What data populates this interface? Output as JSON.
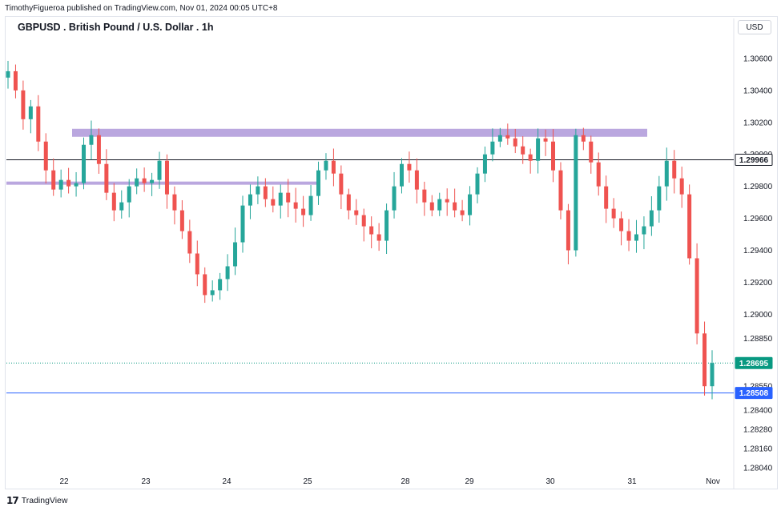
{
  "header": {
    "published_by": "TimothyFigueroa published on TradingView.com, Nov 01, 2024 00:05 UTC+8",
    "title": "GBPUSD . British Pound / U.S. Dollar . 1h",
    "currency": "USD"
  },
  "footer": {
    "brand": "TradingView"
  },
  "colors": {
    "up": "#26a69a",
    "down": "#ef5350",
    "zone": "#b39ddb",
    "black_line": "#131722",
    "blue_line": "#2962ff",
    "green_tag": "#089981"
  },
  "chart_data": {
    "type": "candlestick",
    "ylim": [
      1.28,
      1.3074
    ],
    "y_ticks": [
      "1.30600",
      "1.30400",
      "1.30200",
      "1.30000",
      "1.29800",
      "1.29600",
      "1.29400",
      "1.29200",
      "1.29000",
      "1.28850",
      "1.28550",
      "1.28400",
      "1.28280",
      "1.28160",
      "1.28040"
    ],
    "x_ticks": [
      "22",
      "23",
      "24",
      "25",
      "28",
      "29",
      "30",
      "31",
      "Nov"
    ],
    "price_tags": [
      {
        "label": "1.29966",
        "value": 1.29966,
        "style": "black"
      },
      {
        "label": "1.28695",
        "value": 1.28695,
        "style": "green"
      },
      {
        "label": "1.28508",
        "value": 1.28508,
        "style": "blue"
      }
    ],
    "horizontal_lines": [
      {
        "value": 1.29966,
        "color": "#131722",
        "style": "solid"
      },
      {
        "value": 1.28695,
        "color": "#089981",
        "style": "dotted"
      },
      {
        "value": 1.28508,
        "color": "#2962ff",
        "style": "solid"
      }
    ],
    "zones": [
      {
        "from_day": "22",
        "to_day": "31",
        "y_top": 1.3016,
        "y_bottom": 1.3011
      },
      {
        "from_day": "22",
        "to_day": "25",
        "y_top": 1.2983,
        "y_bottom": 1.2981
      }
    ],
    "close_path": [
      [
        "22",
        1.3052
      ],
      [
        "22",
        1.304
      ],
      [
        "22",
        1.3022
      ],
      [
        "22",
        1.303
      ],
      [
        "22",
        1.3008
      ],
      [
        "22",
        1.299
      ],
      [
        "22",
        1.2978
      ],
      [
        "22",
        1.2984
      ],
      [
        "22",
        1.298
      ],
      [
        "22",
        1.2982
      ],
      [
        "23",
        1.3006
      ],
      [
        "23",
        1.3012
      ],
      [
        "23",
        1.2994
      ],
      [
        "23",
        1.2976
      ],
      [
        "23",
        1.2965
      ],
      [
        "23",
        1.297
      ],
      [
        "23",
        1.298
      ],
      [
        "23",
        1.2985
      ],
      [
        "23",
        1.2982
      ],
      [
        "23",
        1.2984
      ],
      [
        "23",
        1.2996
      ],
      [
        "23",
        1.2975
      ],
      [
        "23",
        1.2965
      ],
      [
        "24",
        1.2952
      ],
      [
        "24",
        1.2938
      ],
      [
        "24",
        1.2925
      ],
      [
        "24",
        1.2912
      ],
      [
        "24",
        1.2915
      ],
      [
        "24",
        1.2922
      ],
      [
        "24",
        1.293
      ],
      [
        "24",
        1.2945
      ],
      [
        "24",
        1.2968
      ],
      [
        "24",
        1.2975
      ],
      [
        "25",
        1.298
      ],
      [
        "25",
        1.2972
      ],
      [
        "25",
        1.2968
      ],
      [
        "25",
        1.2976
      ],
      [
        "25",
        1.297
      ],
      [
        "25",
        1.2966
      ],
      [
        "25",
        1.2962
      ],
      [
        "25",
        1.2974
      ],
      [
        "25",
        1.299
      ],
      [
        "25",
        1.2996
      ],
      [
        "28",
        1.2988
      ],
      [
        "28",
        1.2975
      ],
      [
        "28",
        1.2965
      ],
      [
        "28",
        1.2962
      ],
      [
        "28",
        1.2955
      ],
      [
        "28",
        1.295
      ],
      [
        "28",
        1.2946
      ],
      [
        "28",
        1.2965
      ],
      [
        "28",
        1.298
      ],
      [
        "29",
        1.2994
      ],
      [
        "29",
        1.299
      ],
      [
        "29",
        1.2978
      ],
      [
        "29",
        1.297
      ],
      [
        "29",
        1.2965
      ],
      [
        "29",
        1.2972
      ],
      [
        "29",
        1.297
      ],
      [
        "29",
        1.2965
      ],
      [
        "29",
        1.2962
      ],
      [
        "29",
        1.2975
      ],
      [
        "30",
        1.2988
      ],
      [
        "30",
        1.3
      ],
      [
        "30",
        1.3008
      ],
      [
        "30",
        1.3012
      ],
      [
        "30",
        1.301
      ],
      [
        "30",
        1.3005
      ],
      [
        "30",
        1.3
      ],
      [
        "30",
        1.2996
      ],
      [
        "31",
        1.301
      ],
      [
        "31",
        1.3008
      ],
      [
        "31",
        1.299
      ],
      [
        "31",
        1.2965
      ],
      [
        "31",
        1.294
      ],
      [
        "31",
        1.3012
      ],
      [
        "31",
        1.3008
      ],
      [
        "31",
        1.2995
      ],
      [
        "31",
        1.298
      ],
      [
        "31",
        1.2966
      ],
      [
        "31",
        1.296
      ],
      [
        "31",
        1.2952
      ],
      [
        "31",
        1.2946
      ],
      [
        "31",
        1.295
      ],
      [
        "31",
        1.2955
      ],
      [
        "31",
        1.2965
      ],
      [
        "31",
        1.298
      ],
      [
        "31",
        1.2996
      ],
      [
        "31",
        1.2985
      ],
      [
        "Nov",
        1.2975
      ],
      [
        "Nov",
        1.2935
      ],
      [
        "Nov",
        1.2888
      ],
      [
        "Nov",
        1.2855
      ],
      [
        "Nov",
        1.28695
      ]
    ]
  }
}
